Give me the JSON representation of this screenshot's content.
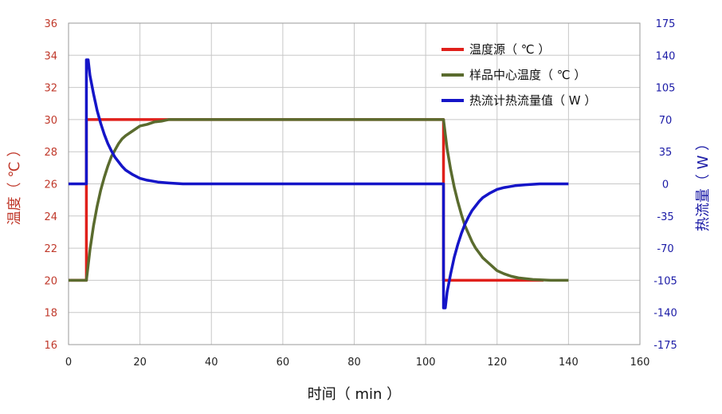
{
  "chart_data": {
    "type": "line",
    "xlabel": "时间（ min ）",
    "ylabel_left": "温度（ ℃ ）",
    "ylabel_right": "热流量（ W ）",
    "xlim": [
      0,
      160
    ],
    "x_ticks": [
      0,
      20,
      40,
      60,
      80,
      100,
      120,
      140,
      160
    ],
    "ylim_left": [
      16,
      36
    ],
    "y_ticks_left": [
      16,
      18,
      20,
      22,
      24,
      26,
      28,
      30,
      32,
      34,
      36
    ],
    "ylim_right": [
      -175,
      175
    ],
    "y_ticks_right": [
      -175,
      -140,
      -105,
      -70,
      -35,
      0,
      35,
      70,
      105,
      140,
      175
    ],
    "grid": true,
    "legend_position": "top-right",
    "series": [
      {
        "name": "温度源（ ℃ ）",
        "axis": "left",
        "color": "#e0201b",
        "x": [
          0,
          5,
          5,
          28,
          105,
          105,
          106,
          133
        ],
        "y": [
          20,
          20,
          30,
          30,
          30,
          20,
          20,
          20
        ]
      },
      {
        "name": "样品中心温度（ ℃ ）",
        "axis": "left",
        "color": "#5a6b2e",
        "x": [
          0,
          5,
          6,
          7,
          8,
          9,
          10,
          11,
          12,
          13,
          14,
          15,
          16,
          18,
          20,
          22,
          24,
          26,
          28,
          105,
          106,
          107,
          108,
          109,
          110,
          111,
          112,
          113,
          114,
          115,
          116,
          118,
          120,
          122,
          124,
          126,
          128,
          130,
          135,
          140
        ],
        "y": [
          20,
          20,
          21.9,
          23.4,
          24.6,
          25.6,
          26.4,
          27.1,
          27.7,
          28.1,
          28.5,
          28.8,
          29.0,
          29.3,
          29.6,
          29.7,
          29.85,
          29.9,
          30,
          30,
          28.2,
          26.9,
          25.8,
          24.9,
          24.1,
          23.4,
          22.9,
          22.4,
          22.0,
          21.7,
          21.4,
          21.0,
          20.6,
          20.4,
          20.25,
          20.15,
          20.1,
          20.05,
          20.0,
          20.0
        ]
      },
      {
        "name": "热流计热流量值（ W ）",
        "axis": "right",
        "color": "#1515c8",
        "x": [
          0,
          5,
          5,
          5.5,
          6,
          7,
          8,
          9,
          10,
          11,
          12,
          13,
          14,
          15,
          16,
          18,
          20,
          22,
          25,
          28,
          32,
          40,
          60,
          80,
          105,
          105,
          105.5,
          106,
          107,
          108,
          109,
          110,
          111,
          112,
          113,
          114,
          115,
          116,
          118,
          120,
          122,
          125,
          128,
          132,
          140
        ],
        "y": [
          0,
          0,
          135,
          135,
          118,
          98,
          80,
          66,
          54,
          44,
          36,
          29,
          24,
          19,
          15,
          10,
          6,
          4,
          2,
          1,
          0,
          0,
          0,
          0,
          0,
          -135,
          -135,
          -118,
          -98,
          -80,
          -66,
          -54,
          -44,
          -36,
          -29,
          -24,
          -19,
          -15,
          -10,
          -6,
          -4,
          -2,
          -1,
          0,
          0
        ]
      }
    ]
  }
}
